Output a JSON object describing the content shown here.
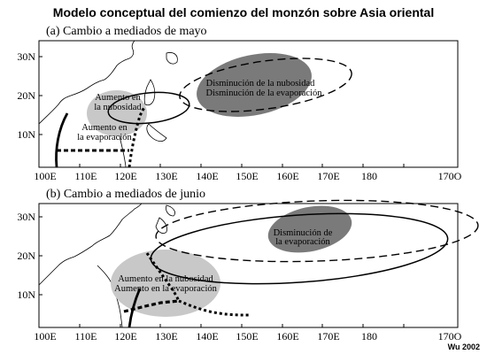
{
  "title": "Modelo conceptual del comienzo del monzón sobre Asia oriental",
  "panel_a": {
    "label": "(a) Cambio a mediados de mayo",
    "lat_labels": [
      "30N",
      "20N",
      "10N"
    ],
    "annotations": {
      "increase_cloud_1": "Aumento en",
      "increase_cloud_2": "la nubosidad",
      "increase_evap_1": "Aumento en",
      "increase_evap_2": "la evaporación",
      "decrease_1": "Disminución de la nubosidad",
      "decrease_2": "Disminución de la evaporación"
    }
  },
  "panel_b": {
    "label": "(b) Cambio a mediados de junio",
    "lat_labels": [
      "30N",
      "20N",
      "10N"
    ],
    "annotations": {
      "decrease_1": "Disminución de",
      "decrease_2": "la evaporación",
      "increase_1": "Aumento en la nubosidad",
      "increase_2": "Aumento en la evaporación"
    }
  },
  "lon_labels": [
    "100E",
    "110E",
    "120E",
    "130E",
    "140E",
    "150E",
    "160E",
    "170E",
    "180",
    "170O"
  ],
  "credit": "Wu 2002"
}
